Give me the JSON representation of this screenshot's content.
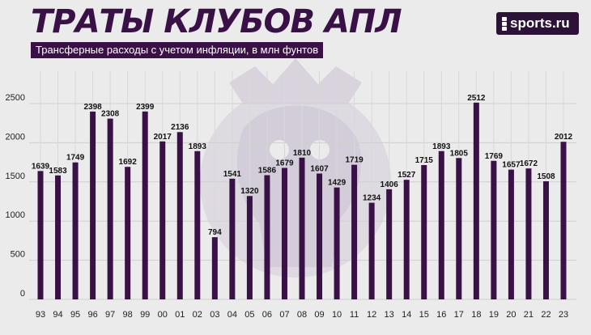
{
  "header": {
    "title": "ТРАТЫ КЛУБОВ АПЛ",
    "subtitle": "Трансферные расходы с учетом инфляции, в млн фунтов"
  },
  "brand": {
    "name": "sports.ru",
    "icon": "sports-ru-logo-icon"
  },
  "colors": {
    "bar": "#3a1147",
    "accent": "#3a1147",
    "background": "#ebebeb",
    "watermark": "#c9c1d3"
  },
  "watermark": "premier-league-lion-icon",
  "chart_data": {
    "type": "bar",
    "categories": [
      "93",
      "94",
      "95",
      "96",
      "97",
      "98",
      "99",
      "00",
      "01",
      "02",
      "03",
      "04",
      "05",
      "06",
      "07",
      "08",
      "09",
      "10",
      "11",
      "12",
      "13",
      "14",
      "15",
      "16",
      "17",
      "18",
      "19",
      "20",
      "21",
      "22",
      "23"
    ],
    "values": [
      1639,
      1583,
      1749,
      2398,
      2308,
      1692,
      2399,
      2017,
      2136,
      1893,
      794,
      1541,
      1320,
      1586,
      1679,
      1810,
      1607,
      1429,
      1719,
      1234,
      1406,
      1527,
      1715,
      1893,
      1805,
      2512,
      1769,
      1657,
      1672,
      1508,
      2012
    ],
    "ylim": [
      0,
      2500
    ],
    "yticks": [
      0,
      500,
      1000,
      1500,
      2000,
      2500
    ],
    "grid": true,
    "data_labels": true
  }
}
